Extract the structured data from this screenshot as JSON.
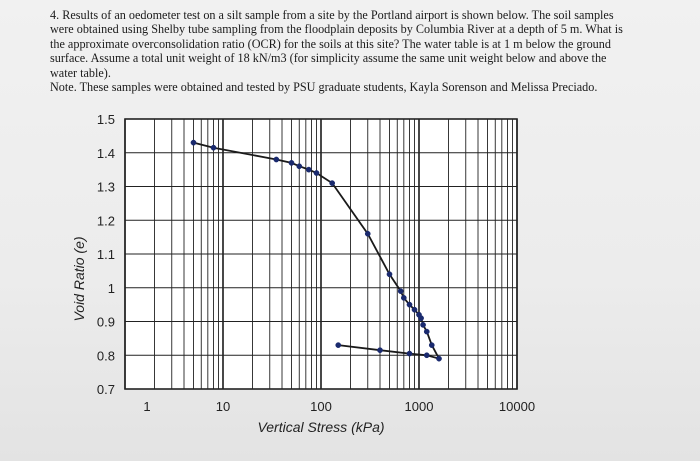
{
  "problem": {
    "lines": [
      "4. Results of an oedometer test on a silt sample from a site by the Portland airport is shown below. The soil samples",
      "were obtained using Shelby tube sampling from the floodplain deposits by Columbia River at a depth of 5 m. What is",
      "the approximate overconsolidation ratio (OCR) for the soils at this site? The water table is at 1 m below the ground",
      "surface. Assume a total unit weight of 18 kN/m3 (for simplicity assume the same unit weight below and above the",
      "water table)."
    ],
    "note": "Note. These samples were obtained and tested by PSU graduate students, Kayla Sorenson and Melissa Preciado."
  },
  "chart_data": {
    "type": "line",
    "xlabel": "Vertical Stress (kPa)",
    "ylabel": "Void Ratio (e)",
    "xscale": "log",
    "xlim": [
      1,
      10000
    ],
    "ylim": [
      0.7,
      1.5
    ],
    "grid": true,
    "xticks": [
      "1",
      "10",
      "100",
      "1000",
      "10000"
    ],
    "yticks": [
      "1.5",
      "1.4",
      "1.3",
      "1.2",
      "1.1",
      "1",
      "0.9",
      "0.8",
      "0.7"
    ],
    "series": [
      {
        "points": [
          [
            5,
            1.43
          ],
          [
            8,
            1.415
          ],
          [
            35,
            1.38
          ],
          [
            50,
            1.37
          ],
          [
            60,
            1.36
          ],
          [
            75,
            1.35
          ],
          [
            90,
            1.34
          ],
          [
            130,
            1.31
          ],
          [
            300,
            1.16
          ],
          [
            500,
            1.04
          ],
          [
            650,
            0.99
          ],
          [
            700,
            0.97
          ],
          [
            800,
            0.95
          ],
          [
            900,
            0.935
          ],
          [
            1000,
            0.92
          ],
          [
            1050,
            0.91
          ],
          [
            1100,
            0.89
          ],
          [
            1200,
            0.87
          ],
          [
            1350,
            0.83
          ],
          [
            1600,
            0.79
          ],
          [
            1200,
            0.8
          ],
          [
            800,
            0.805
          ],
          [
            400,
            0.815
          ],
          [
            150,
            0.83
          ]
        ]
      }
    ]
  },
  "colors": {
    "background": "#eeeeee",
    "plot_background": "#ffffff",
    "grid": "#222222",
    "line": "#1a1a1a",
    "marker": "#1a2a6e"
  }
}
